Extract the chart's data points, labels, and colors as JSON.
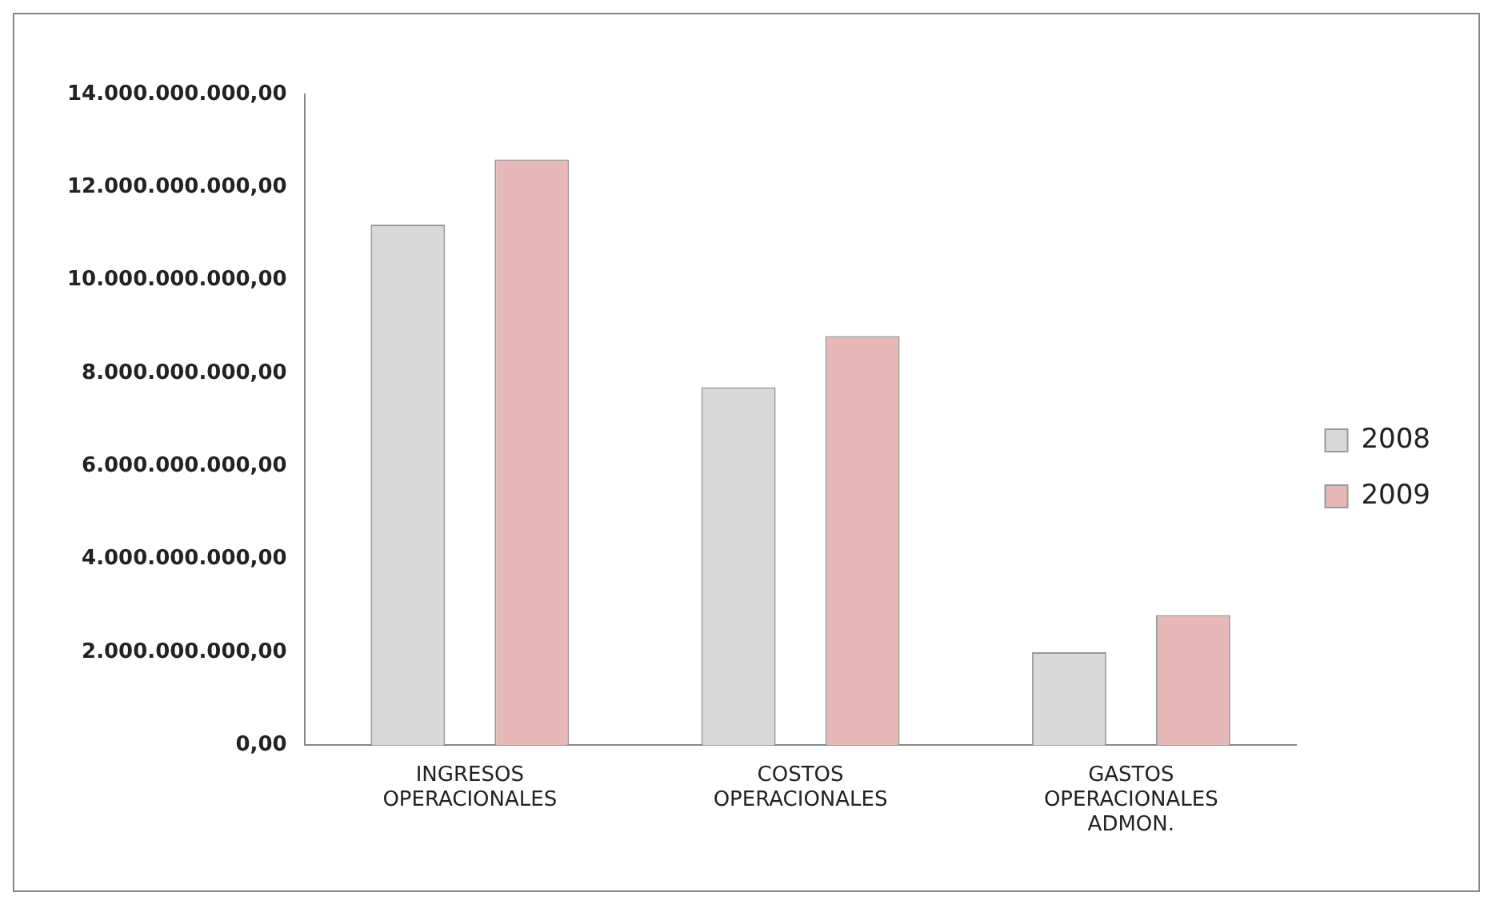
{
  "chart_data": {
    "type": "bar",
    "categories": [
      "INGRESOS OPERACIONALES",
      "COSTOS OPERACIONALES",
      "GASTOS OPERACIONALES ADMON."
    ],
    "series": [
      {
        "name": "2008",
        "color": "#d9d9d9",
        "values": [
          11200000000,
          7700000000,
          2000000000
        ]
      },
      {
        "name": "2009",
        "color": "#e6b9b8",
        "values": [
          12600000000,
          8800000000,
          2800000000
        ]
      }
    ],
    "ylim": [
      0,
      14000000000
    ],
    "yticks": [
      {
        "value": 0,
        "label": "0,00"
      },
      {
        "value": 2000000000,
        "label": "2.000.000.000,00"
      },
      {
        "value": 4000000000,
        "label": "4.000.000.000,00"
      },
      {
        "value": 6000000000,
        "label": "6.000.000.000,00"
      },
      {
        "value": 8000000000,
        "label": "8.000.000.000,00"
      },
      {
        "value": 10000000000,
        "label": "10.000.000.000,00"
      },
      {
        "value": 12000000000,
        "label": "12.000.000.000,00"
      },
      {
        "value": 14000000000,
        "label": "14.000.000.000,00"
      }
    ],
    "grid": false,
    "legend": "right"
  }
}
